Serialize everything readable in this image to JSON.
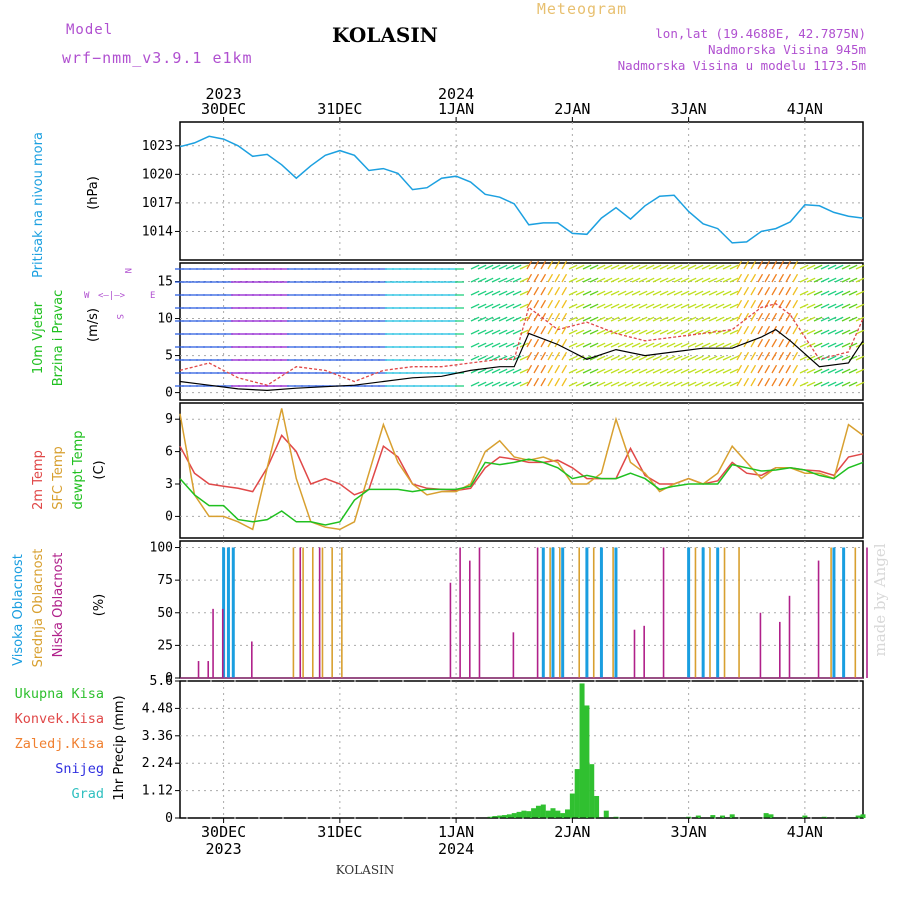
{
  "header": {
    "model_label": "Model",
    "model_name": "wrf−nmm_v3.9.1  e1km",
    "title": "KOLASIN",
    "product": "Meteogram",
    "lonlat": "lon,lat (19.4688E, 42.7875N)",
    "altitude": "Nadmorska Visina 945m",
    "model_altitude": "Nadmorska Visina u modelu 1173.5m"
  },
  "footer_label": "KOLASIN",
  "watermark": "made by Angel",
  "x_axis": {
    "start": "2023-12-29T15:00",
    "end": "2024-01-04T12:00",
    "ticks_top": [
      {
        "date": "2023-12-30T00:00",
        "day": "30DEC",
        "year": "2023"
      },
      {
        "date": "2023-12-31T00:00",
        "day": "31DEC",
        "year": ""
      },
      {
        "date": "2024-01-01T00:00",
        "day": "1JAN",
        "year": "2024"
      },
      {
        "date": "2024-01-02T00:00",
        "day": "2JAN",
        "year": ""
      },
      {
        "date": "2024-01-03T00:00",
        "day": "3JAN",
        "year": ""
      },
      {
        "date": "2024-01-04T00:00",
        "day": "4JAN",
        "year": ""
      }
    ]
  },
  "colors": {
    "pressure": "#1ca0e0",
    "t2m": "#e04848",
    "sfc": "#d8a030",
    "dew": "#20c020",
    "wind_speed": "#000000",
    "wind_gust": "#e04848",
    "precip": "#30c030",
    "cloud_high": "#1a9ee0",
    "cloud_mid": "#d8a030",
    "cloud_low": "#b0208a",
    "grid": "#aaaaaa",
    "header_magenta": "#b050d0",
    "header_orange": "#e8c070",
    "legend_green": "#30c030",
    "legend_red": "#e04848",
    "legend_orange": "#f08030",
    "legend_blue": "#3030e0",
    "legend_teal": "#30c0c0",
    "title": "#000000"
  },
  "chart_data": [
    {
      "type": "line",
      "panel": "pressure",
      "ylabel_parts": [
        "Pritisak na nivou mora",
        "(hPa)"
      ],
      "ylim": [
        1011,
        1025.5
      ],
      "yticks": [
        1014,
        1017,
        1020,
        1023
      ],
      "grid": true,
      "series": [
        {
          "color": "#1ca0e0",
          "x": [
            "2023-12-29T15:00",
            "2023-12-29T18:00",
            "2023-12-29T21:00",
            "2023-12-30T00:00",
            "2023-12-30T03:00",
            "2023-12-30T06:00",
            "2023-12-30T09:00",
            "2023-12-30T12:00",
            "2023-12-30T15:00",
            "2023-12-30T18:00",
            "2023-12-30T21:00",
            "2023-12-31T00:00",
            "2023-12-31T03:00",
            "2023-12-31T06:00",
            "2023-12-31T09:00",
            "2023-12-31T12:00",
            "2023-12-31T15:00",
            "2023-12-31T18:00",
            "2023-12-31T21:00",
            "2024-01-01T00:00",
            "2024-01-01T03:00",
            "2024-01-01T06:00",
            "2024-01-01T09:00",
            "2024-01-01T12:00",
            "2024-01-01T15:00",
            "2024-01-01T18:00",
            "2024-01-01T21:00",
            "2024-01-02T00:00",
            "2024-01-02T03:00",
            "2024-01-02T06:00",
            "2024-01-02T09:00",
            "2024-01-02T12:00",
            "2024-01-02T15:00",
            "2024-01-02T18:00",
            "2024-01-02T21:00",
            "2024-01-03T00:00",
            "2024-01-03T03:00",
            "2024-01-03T06:00",
            "2024-01-03T09:00",
            "2024-01-03T12:00",
            "2024-01-03T15:00",
            "2024-01-03T18:00",
            "2024-01-03T21:00",
            "2024-01-04T00:00",
            "2024-01-04T03:00",
            "2024-01-04T06:00",
            "2024-01-04T09:00",
            "2024-01-04T12:00"
          ],
          "values": [
            1022.9,
            1023.3,
            1024.0,
            1023.7,
            1023.0,
            1021.9,
            1022.1,
            1021.0,
            1019.6,
            1020.9,
            1022.0,
            1022.5,
            1022.0,
            1020.4,
            1020.6,
            1020.1,
            1018.4,
            1018.6,
            1019.6,
            1019.8,
            1019.2,
            1017.9,
            1017.6,
            1016.9,
            1014.7,
            1014.9,
            1014.9,
            1013.8,
            1013.7,
            1015.4,
            1016.5,
            1015.3,
            1016.7,
            1017.7,
            1017.8,
            1016.1,
            1014.8,
            1014.3,
            1012.8,
            1012.9,
            1014.0,
            1014.3,
            1015.0,
            1016.8,
            1016.7,
            1016.0,
            1015.6,
            1015.4
          ]
        }
      ]
    },
    {
      "type": "line",
      "panel": "wind",
      "ylabel_parts": [
        "10m Vjetar",
        "Brzina i Pravac",
        "(m/s)"
      ],
      "compass": [
        "N",
        "W",
        "E",
        "S"
      ],
      "ylim": [
        -1,
        17.5
      ],
      "yticks": [
        0,
        5,
        10,
        15
      ],
      "grid": true,
      "series": [
        {
          "role": "speed",
          "color": "#000000",
          "x": [
            "2023-12-29T15:00",
            "2023-12-29T21:00",
            "2023-12-30T03:00",
            "2023-12-30T09:00",
            "2023-12-30T15:00",
            "2023-12-30T21:00",
            "2023-12-31T03:00",
            "2023-12-31T09:00",
            "2023-12-31T15:00",
            "2023-12-31T21:00",
            "2024-01-01T03:00",
            "2024-01-01T09:00",
            "2024-01-01T12:00",
            "2024-01-01T15:00",
            "2024-01-01T21:00",
            "2024-01-02T03:00",
            "2024-01-02T09:00",
            "2024-01-02T15:00",
            "2024-01-02T21:00",
            "2024-01-03T03:00",
            "2024-01-03T09:00",
            "2024-01-03T15:00",
            "2024-01-03T18:00",
            "2024-01-03T21:00",
            "2024-01-04T03:00",
            "2024-01-04T09:00",
            "2024-01-04T12:00"
          ],
          "values": [
            1.5,
            1.0,
            0.5,
            0.3,
            0.6,
            0.8,
            1.0,
            1.5,
            2.0,
            2.2,
            3.0,
            3.5,
            3.5,
            8.0,
            6.5,
            4.5,
            5.8,
            5.0,
            5.5,
            6.0,
            6.0,
            7.5,
            8.5,
            7.0,
            3.5,
            4.0,
            7.0
          ]
        },
        {
          "role": "gust",
          "color": "#e04848",
          "x": [
            "2023-12-29T15:00",
            "2023-12-29T21:00",
            "2023-12-30T03:00",
            "2023-12-30T09:00",
            "2023-12-30T15:00",
            "2023-12-30T21:00",
            "2023-12-31T03:00",
            "2023-12-31T09:00",
            "2023-12-31T15:00",
            "2023-12-31T21:00",
            "2024-01-01T03:00",
            "2024-01-01T09:00",
            "2024-01-01T12:00",
            "2024-01-01T15:00",
            "2024-01-01T21:00",
            "2024-01-02T03:00",
            "2024-01-02T09:00",
            "2024-01-02T15:00",
            "2024-01-02T21:00",
            "2024-01-03T03:00",
            "2024-01-03T09:00",
            "2024-01-03T15:00",
            "2024-01-03T18:00",
            "2024-01-03T21:00",
            "2024-01-04T03:00",
            "2024-01-04T09:00",
            "2024-01-04T12:00"
          ],
          "values": [
            3.0,
            4.0,
            2.0,
            1.0,
            3.5,
            3.0,
            1.5,
            3.0,
            3.5,
            3.5,
            4.0,
            4.5,
            4.5,
            11.5,
            8.5,
            9.5,
            8.0,
            7.0,
            7.5,
            8.0,
            8.5,
            11.5,
            12.0,
            10.5,
            4.5,
            5.5,
            10.0
          ]
        }
      ]
    },
    {
      "type": "line",
      "panel": "temperature",
      "ylabel_parts": [
        "2m Temp",
        "SFC Temp",
        "dewpt Temp",
        "(C)"
      ],
      "ylim": [
        -2,
        10.5
      ],
      "yticks": [
        0,
        3,
        6,
        9
      ],
      "grid": true,
      "x": [
        "2023-12-29T15:00",
        "2023-12-29T18:00",
        "2023-12-29T21:00",
        "2023-12-30T00:00",
        "2023-12-30T03:00",
        "2023-12-30T06:00",
        "2023-12-30T09:00",
        "2023-12-30T12:00",
        "2023-12-30T15:00",
        "2023-12-30T18:00",
        "2023-12-30T21:00",
        "2023-12-31T00:00",
        "2023-12-31T03:00",
        "2023-12-31T06:00",
        "2023-12-31T09:00",
        "2023-12-31T12:00",
        "2023-12-31T15:00",
        "2023-12-31T18:00",
        "2023-12-31T21:00",
        "2024-01-01T00:00",
        "2024-01-01T03:00",
        "2024-01-01T06:00",
        "2024-01-01T09:00",
        "2024-01-01T12:00",
        "2024-01-01T15:00",
        "2024-01-01T18:00",
        "2024-01-01T21:00",
        "2024-01-02T00:00",
        "2024-01-02T03:00",
        "2024-01-02T06:00",
        "2024-01-02T09:00",
        "2024-01-02T12:00",
        "2024-01-02T15:00",
        "2024-01-02T18:00",
        "2024-01-02T21:00",
        "2024-01-03T00:00",
        "2024-01-03T03:00",
        "2024-01-03T06:00",
        "2024-01-03T09:00",
        "2024-01-03T12:00",
        "2024-01-03T15:00",
        "2024-01-03T18:00",
        "2024-01-03T21:00",
        "2024-01-04T00:00",
        "2024-01-04T03:00",
        "2024-01-04T06:00",
        "2024-01-04T09:00",
        "2024-01-04T12:00"
      ],
      "series": [
        {
          "color": "#e04848",
          "values": [
            6.5,
            4.0,
            3.0,
            2.8,
            2.6,
            2.3,
            4.5,
            7.5,
            6.0,
            3.0,
            3.5,
            3.0,
            2.0,
            2.5,
            6.5,
            5.5,
            3.0,
            2.6,
            2.5,
            2.4,
            2.6,
            4.5,
            5.5,
            5.3,
            5.0,
            5.0,
            5.2,
            4.5,
            3.5,
            3.5,
            3.5,
            6.3,
            3.8,
            3.0,
            3.0,
            3.5,
            3.0,
            3.3,
            5.0,
            4.0,
            3.8,
            4.5,
            4.5,
            4.3,
            4.2,
            3.8,
            5.5,
            5.8
          ]
        },
        {
          "color": "#d8a030",
          "values": [
            9.5,
            2.0,
            0.0,
            0.0,
            -0.5,
            -1.2,
            4.5,
            10.0,
            3.5,
            -0.5,
            -1.0,
            -1.2,
            -0.5,
            4.0,
            8.5,
            5.0,
            3.0,
            2.0,
            2.3,
            2.3,
            3.0,
            6.0,
            7.0,
            5.5,
            5.2,
            5.5,
            5.0,
            3.0,
            3.0,
            4.0,
            9.0,
            5.0,
            4.0,
            2.3,
            3.0,
            3.5,
            3.0,
            4.0,
            6.5,
            5.0,
            3.5,
            4.5,
            4.5,
            4.0,
            4.0,
            3.5,
            8.5,
            7.5
          ]
        },
        {
          "color": "#20c020",
          "values": [
            3.5,
            2.0,
            1.0,
            1.0,
            -0.3,
            -0.5,
            -0.3,
            0.5,
            -0.5,
            -0.5,
            -0.8,
            -0.5,
            1.5,
            2.5,
            2.5,
            2.5,
            2.3,
            2.5,
            2.5,
            2.5,
            2.8,
            5.0,
            4.8,
            5.0,
            5.3,
            5.0,
            4.5,
            3.5,
            3.8,
            3.5,
            3.5,
            4.0,
            3.5,
            2.5,
            2.8,
            3.0,
            3.0,
            3.0,
            4.8,
            4.5,
            4.2,
            4.3,
            4.5,
            4.3,
            3.8,
            3.5,
            4.5,
            5.0
          ]
        }
      ]
    },
    {
      "type": "bar",
      "panel": "clouds",
      "ylabel_parts": [
        "Visoka Oblacnost",
        "Srednja Oblacnost",
        "Niska Oblacnost",
        "(%)"
      ],
      "ylim": [
        0,
        105
      ],
      "yticks": [
        0,
        25,
        50,
        75,
        100
      ],
      "grid": true,
      "series": [
        {
          "name": "Visoka Oblacnost",
          "color": "#1a9ee0",
          "x": [
            "2023-12-30T00:00",
            "2023-12-30T01:00",
            "2023-12-30T02:00",
            "2024-01-01T18:00",
            "2024-01-01T20:00",
            "2024-01-01T22:00",
            "2024-01-02T03:00",
            "2024-01-02T06:00",
            "2024-01-02T09:00",
            "2024-01-03T00:00",
            "2024-01-03T03:00",
            "2024-01-03T06:00",
            "2024-01-04T06:00",
            "2024-01-04T08:00"
          ],
          "values": [
            100,
            100,
            100,
            100,
            100,
            100,
            100,
            100,
            100,
            100,
            100,
            100,
            100,
            100
          ]
        },
        {
          "name": "Srednja Oblacnost",
          "color": "#d8a030",
          "x": [
            "2023-12-30T14:00",
            "2023-12-30T16:00",
            "2023-12-30T18:00",
            "2023-12-30T20:00",
            "2023-12-30T22:00",
            "2023-12-31T00:00",
            "2024-01-01T19:00",
            "2024-01-01T21:00",
            "2024-01-02T01:00",
            "2024-01-02T04:00",
            "2024-01-02T08:00",
            "2024-01-03T01:00",
            "2024-01-03T04:00",
            "2024-01-03T07:00",
            "2024-01-03T10:00",
            "2024-01-04T05:00",
            "2024-01-04T10:00"
          ],
          "values": [
            100,
            100,
            100,
            100,
            100,
            100,
            100,
            100,
            100,
            100,
            100,
            100,
            100,
            100,
            100,
            100,
            100
          ]
        },
        {
          "name": "Niska Oblacnost",
          "color": "#b0208a",
          "x": [
            "2023-12-29T18:00",
            "2023-12-29T20:00",
            "2023-12-29T21:00",
            "2023-12-29T23:00",
            "2023-12-30T05:00",
            "2023-12-30T15:00",
            "2023-12-30T19:00",
            "2023-12-31T22:00",
            "2024-01-01T00:00",
            "2024-01-01T02:00",
            "2024-01-01T04:00",
            "2024-01-01T11:00",
            "2024-01-01T16:00",
            "2024-01-02T12:00",
            "2024-01-02T14:00",
            "2024-01-02T18:00",
            "2024-01-03T14:00",
            "2024-01-03T18:00",
            "2024-01-03T20:00",
            "2024-01-04T02:00",
            "2024-01-04T12:00"
          ],
          "values": [
            13,
            13,
            53,
            53,
            28,
            100,
            100,
            73,
            100,
            90,
            100,
            35,
            100,
            37,
            40,
            100,
            50,
            43,
            63,
            90,
            100
          ]
        }
      ]
    },
    {
      "type": "bar",
      "panel": "precipitation",
      "ylabel": "1hr Precip (mm)",
      "legend": [
        "Ukupna  Kisa",
        "Konvek.Kisa",
        "Zaledj.Kisa",
        "Snijeg",
        "Grad"
      ],
      "ylim": [
        0,
        5.6
      ],
      "yticks": [
        0,
        1.12,
        2.24,
        3.36,
        4.48,
        5.6
      ],
      "ytick_labels": [
        "0",
        "1.12",
        "2.24",
        "3.36",
        "4.48",
        "5.6"
      ],
      "grid": true,
      "series": [
        {
          "name": "Ukupna  Kisa",
          "color": "#30c030",
          "x": [
            "2024-01-01T07:00",
            "2024-01-01T08:00",
            "2024-01-01T09:00",
            "2024-01-01T10:00",
            "2024-01-01T11:00",
            "2024-01-01T12:00",
            "2024-01-01T13:00",
            "2024-01-01T14:00",
            "2024-01-01T15:00",
            "2024-01-01T16:00",
            "2024-01-01T17:00",
            "2024-01-01T18:00",
            "2024-01-01T19:00",
            "2024-01-01T20:00",
            "2024-01-01T21:00",
            "2024-01-01T22:00",
            "2024-01-01T23:00",
            "2024-01-02T00:00",
            "2024-01-02T01:00",
            "2024-01-02T02:00",
            "2024-01-02T03:00",
            "2024-01-02T04:00",
            "2024-01-02T05:00",
            "2024-01-02T07:00",
            "2024-01-02T09:00",
            "2024-01-03T00:00",
            "2024-01-03T02:00",
            "2024-01-03T05:00",
            "2024-01-03T07:00",
            "2024-01-03T09:00",
            "2024-01-03T16:00",
            "2024-01-03T17:00",
            "2024-01-04T00:00",
            "2024-01-04T04:00",
            "2024-01-04T11:00",
            "2024-01-04T12:00"
          ],
          "values": [
            0.05,
            0.08,
            0.1,
            0.12,
            0.15,
            0.2,
            0.25,
            0.3,
            0.28,
            0.4,
            0.5,
            0.55,
            0.3,
            0.4,
            0.3,
            0.2,
            0.35,
            1.0,
            2.0,
            5.5,
            4.6,
            2.2,
            0.9,
            0.3,
            0.05,
            0.05,
            0.1,
            0.12,
            0.1,
            0.15,
            0.2,
            0.15,
            0.1,
            0.05,
            0.1,
            0.15
          ]
        }
      ]
    }
  ]
}
